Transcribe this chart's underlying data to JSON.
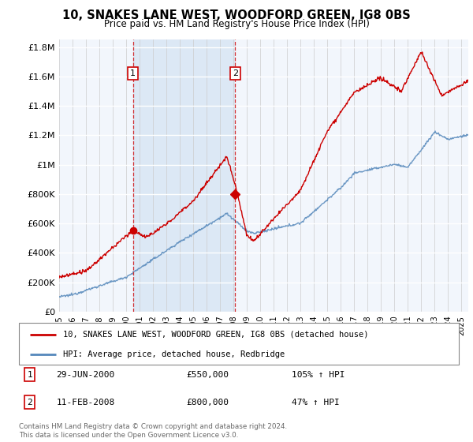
{
  "title": "10, SNAKES LANE WEST, WOODFORD GREEN, IG8 0BS",
  "subtitle": "Price paid vs. HM Land Registry's House Price Index (HPI)",
  "hpi_label": "HPI: Average price, detached house, Redbridge",
  "property_label": "10, SNAKES LANE WEST, WOODFORD GREEN, IG8 0BS (detached house)",
  "property_color": "#cc0000",
  "hpi_color": "#5588bb",
  "shade_color": "#dce8f5",
  "background_color": "#f2f6fc",
  "sale1_date": "29-JUN-2000",
  "sale1_price": 550000,
  "sale1_label": "105% ↑ HPI",
  "sale1_year": 2000.5,
  "sale2_date": "11-FEB-2008",
  "sale2_price": 800000,
  "sale2_label": "47% ↑ HPI",
  "sale2_year": 2008.12,
  "ylim": [
    0,
    1850000
  ],
  "yticks": [
    0,
    200000,
    400000,
    600000,
    800000,
    1000000,
    1200000,
    1400000,
    1600000,
    1800000
  ],
  "xlim_start": 1995,
  "xlim_end": 2025.5,
  "footer": "Contains HM Land Registry data © Crown copyright and database right 2024.\nThis data is licensed under the Open Government Licence v3.0."
}
